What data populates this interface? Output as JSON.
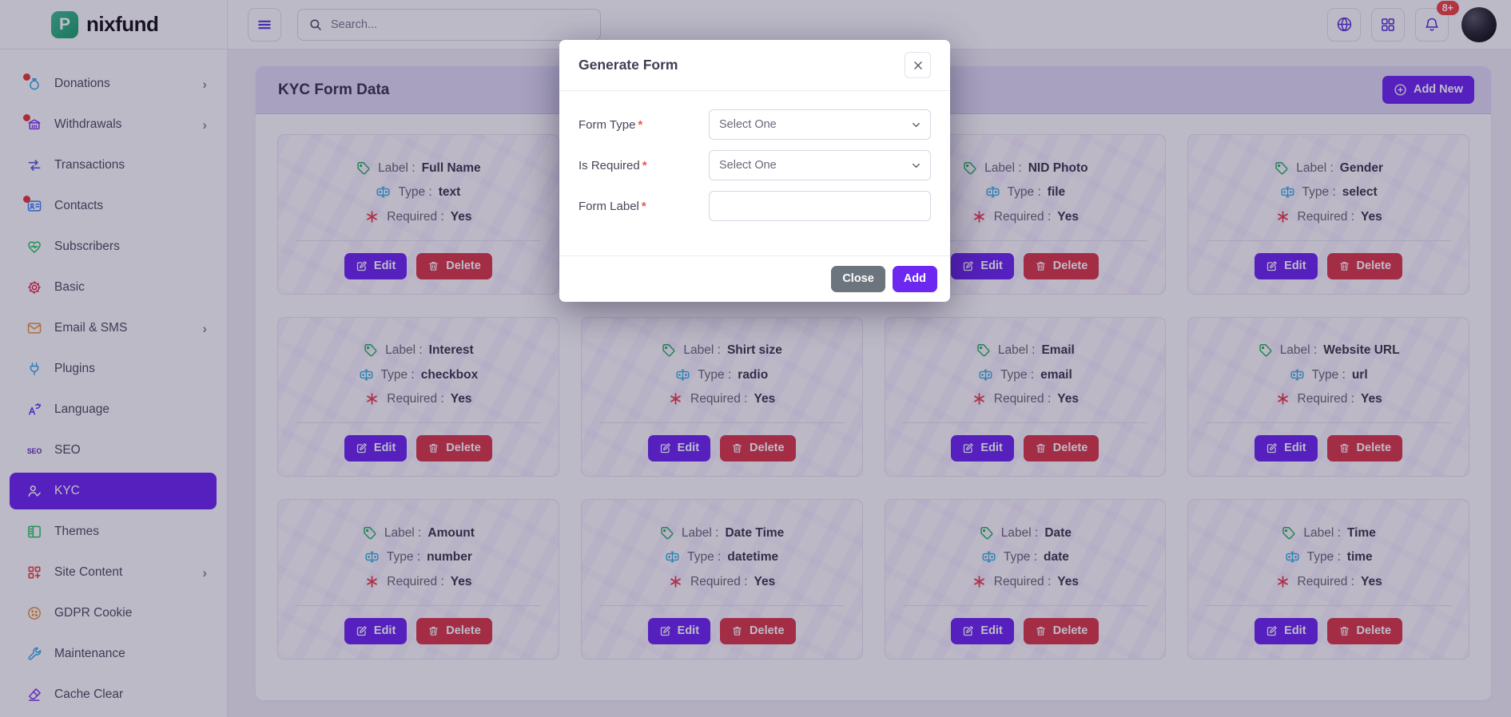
{
  "brand": {
    "name": "nixfund"
  },
  "navbar": {
    "search_placeholder": "Search...",
    "notification_count": "8+",
    "icons": [
      "menu-icon",
      "globe-icon",
      "apps-grid-icon",
      "bell-icon",
      "user-avatar"
    ]
  },
  "sidebar": {
    "items": [
      {
        "label": "Donations",
        "icon": "donations",
        "color": "#2ea8e8",
        "chevron": true,
        "dot": true,
        "active": false
      },
      {
        "label": "Withdrawals",
        "icon": "withdrawals",
        "color": "#7c3aed",
        "chevron": true,
        "dot": true,
        "active": false
      },
      {
        "label": "Transactions",
        "icon": "transactions",
        "color": "#5b5bd6",
        "chevron": false,
        "dot": false,
        "active": false
      },
      {
        "label": "Contacts",
        "icon": "contacts",
        "color": "#3b82f6",
        "chevron": false,
        "dot": true,
        "active": false
      },
      {
        "label": "Subscribers",
        "icon": "subscribers",
        "color": "#22c55e",
        "chevron": false,
        "dot": false,
        "active": false
      },
      {
        "label": "Basic",
        "icon": "basic",
        "color": "#e11d48",
        "chevron": false,
        "dot": false,
        "active": false
      },
      {
        "label": "Email & SMS",
        "icon": "email",
        "color": "#e8923c",
        "chevron": true,
        "dot": false,
        "active": false
      },
      {
        "label": "Plugins",
        "icon": "plugins",
        "color": "#38a8e8",
        "chevron": false,
        "dot": false,
        "active": false
      },
      {
        "label": "Language",
        "icon": "language",
        "color": "#5b3df5",
        "chevron": false,
        "dot": false,
        "active": false
      },
      {
        "label": "SEO",
        "icon": "seo",
        "color": "#5b2dbe",
        "chevron": false,
        "dot": false,
        "active": false
      },
      {
        "label": "KYC",
        "icon": "kyc",
        "color": "#ffffff",
        "chevron": false,
        "dot": false,
        "active": true
      },
      {
        "label": "Themes",
        "icon": "themes",
        "color": "#22c55e",
        "chevron": false,
        "dot": false,
        "active": false
      },
      {
        "label": "Site Content",
        "icon": "site-content",
        "color": "#ef4444",
        "chevron": true,
        "dot": false,
        "active": false
      },
      {
        "label": "GDPR Cookie",
        "icon": "gdpr",
        "color": "#e8923c",
        "chevron": false,
        "dot": false,
        "active": false
      },
      {
        "label": "Maintenance",
        "icon": "maintenance",
        "color": "#38a8e8",
        "chevron": false,
        "dot": false,
        "active": false
      },
      {
        "label": "Cache Clear",
        "icon": "cache",
        "color": "#7c3aed",
        "chevron": false,
        "dot": false,
        "active": false
      }
    ]
  },
  "main": {
    "title": "KYC Form Data",
    "add_new_label": "Add New",
    "edit_label": "Edit",
    "delete_label": "Delete",
    "field_labels": {
      "label": "Label",
      "type": "Type",
      "required": "Required"
    },
    "cards": [
      {
        "label": "Full Name",
        "type": "text",
        "required": "Yes",
        "hidden": false
      },
      {
        "label": "",
        "type": "",
        "required": "",
        "hidden": true
      },
      {
        "label": "NID Photo",
        "type": "file",
        "required": "Yes",
        "hidden": false
      },
      {
        "label": "Gender",
        "type": "select",
        "required": "Yes",
        "hidden": false
      },
      {
        "label": "Interest",
        "type": "checkbox",
        "required": "Yes",
        "hidden": false
      },
      {
        "label": "Shirt size",
        "type": "radio",
        "required": "Yes",
        "hidden": false
      },
      {
        "label": "Email",
        "type": "email",
        "required": "Yes",
        "hidden": false
      },
      {
        "label": "Website URL",
        "type": "url",
        "required": "Yes",
        "hidden": false
      },
      {
        "label": "Amount",
        "type": "number",
        "required": "Yes",
        "hidden": false
      },
      {
        "label": "Date Time",
        "type": "datetime",
        "required": "Yes",
        "hidden": false
      },
      {
        "label": "Date",
        "type": "date",
        "required": "Yes",
        "hidden": false
      },
      {
        "label": "Time",
        "type": "time",
        "required": "Yes",
        "hidden": false
      }
    ]
  },
  "modal": {
    "title": "Generate Form",
    "close_icon": "×",
    "fields": [
      {
        "label": "Form Type",
        "required": true,
        "control": "select",
        "value": "Select One"
      },
      {
        "label": "Is Required",
        "required": true,
        "control": "select",
        "value": "Select One"
      },
      {
        "label": "Form Label",
        "required": true,
        "control": "input",
        "value": ""
      }
    ],
    "close_label": "Close",
    "add_label": "Add"
  },
  "colors": {
    "primary": "#6d28f0",
    "danger": "#d93a4a",
    "badge": "#ef4444",
    "header_strip": "#dfdcf4"
  }
}
